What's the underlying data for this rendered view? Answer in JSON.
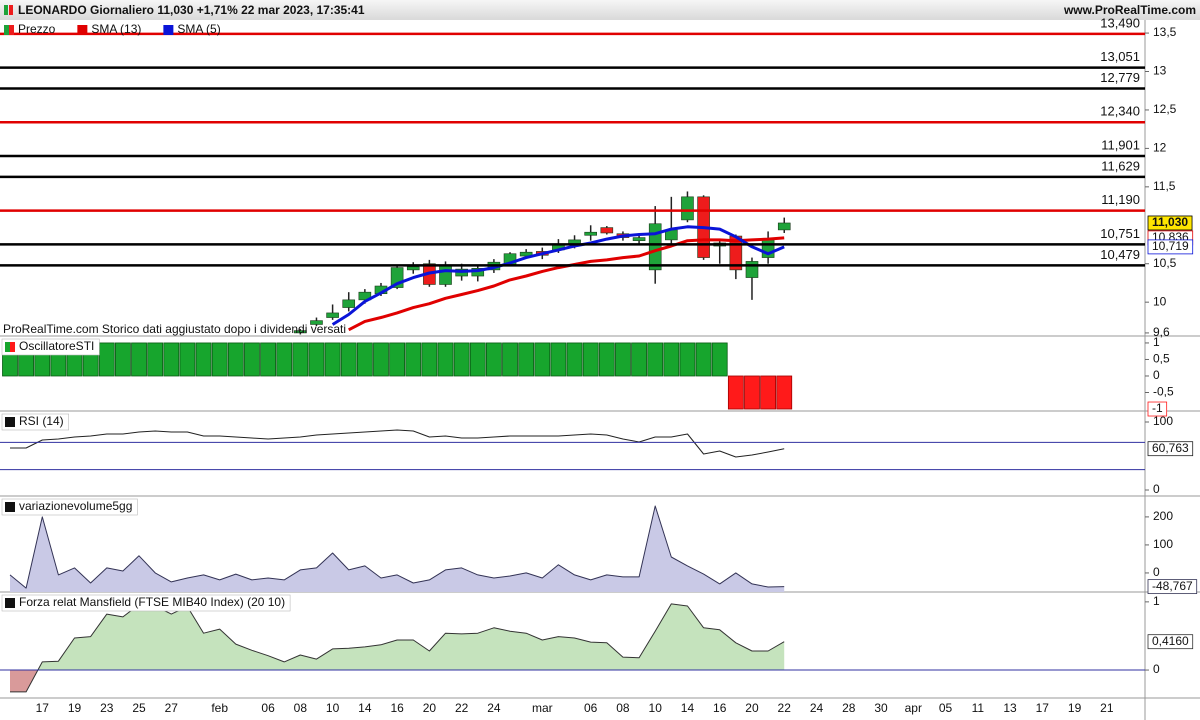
{
  "header": {
    "title": "LEONARDO Giornaliero 11,030 +1,71% 22 mar 2023, 17:35:41",
    "site": "www.ProRealTime.com"
  },
  "categories": [
    null,
    null,
    "17",
    null,
    "19",
    null,
    "23",
    null,
    "25",
    null,
    "27",
    null,
    null,
    "feb",
    null,
    null,
    "06",
    null,
    "08",
    null,
    "10",
    null,
    "14",
    null,
    "16",
    null,
    "20",
    null,
    "22",
    null,
    "24",
    null,
    null,
    "mar",
    null,
    null,
    "06",
    null,
    "08",
    null,
    "10",
    null,
    "14",
    null,
    "16",
    null,
    "20",
    null,
    "22",
    null,
    "24",
    null,
    "28",
    null,
    "30",
    null,
    "apr",
    null,
    "05",
    null,
    "11",
    null,
    "13",
    null,
    "17",
    null,
    "19",
    null,
    "21"
  ],
  "chart_data": [
    {
      "type": "candlestick",
      "note": "ProRealTime.com  Storico dati aggiustato dopo i dividendi versati",
      "ylim": [
        9.56,
        13.67
      ],
      "yticks": [
        {
          "value": 13.5,
          "label": "13,5"
        },
        13,
        {
          "value": 12.5,
          "label": "12,5"
        },
        12,
        {
          "value": 11.5,
          "label": "11,5"
        },
        {
          "value": 10.5,
          "label": "10,5"
        },
        10,
        {
          "value": 9.6,
          "label": "9,6"
        }
      ],
      "levels": [
        {
          "value": 13.49,
          "label": "13,490",
          "color": "#e00000"
        },
        {
          "value": 13.051,
          "label": "13,051",
          "color": "#000000"
        },
        {
          "value": 12.779,
          "label": "12,779",
          "color": "#000000"
        },
        {
          "value": 12.34,
          "label": "12,340",
          "color": "#e00000"
        },
        {
          "value": 11.901,
          "label": "11,901",
          "color": "#000000"
        },
        {
          "value": 11.629,
          "label": "11,629",
          "color": "#000000"
        },
        {
          "value": 11.19,
          "label": "11,190",
          "color": "#e00000"
        },
        {
          "value": 10.751,
          "label": "10,751",
          "color": "#000000"
        },
        {
          "value": 10.479,
          "label": "10,479",
          "color": "#000000"
        }
      ],
      "series": [
        {
          "name": "Prezzo",
          "type": "candlestick",
          "color": "#1fa33a",
          "color_negative": "#ee1c1c",
          "last_label": "11,030",
          "last_label_fill": "#ffe600",
          "open": [
            null,
            null,
            null,
            null,
            null,
            null,
            null,
            null,
            null,
            null,
            null,
            null,
            null,
            null,
            null,
            null,
            null,
            null,
            9.6,
            9.71,
            9.8,
            9.93,
            10.03,
            10.11,
            10.19,
            10.42,
            10.5,
            10.23,
            10.34,
            10.34,
            10.42,
            10.49,
            10.6,
            10.66,
            10.68,
            10.75,
            10.87,
            10.97,
            10.89,
            10.8,
            10.42,
            10.81,
            11.07,
            11.37,
            10.73,
            10.86,
            10.32,
            10.58,
            10.94,
            null,
            null,
            null,
            null,
            null,
            null,
            null,
            null,
            null,
            null,
            null,
            null,
            null,
            null,
            null,
            null,
            null,
            null,
            null,
            null
          ],
          "high": [
            null,
            null,
            null,
            null,
            null,
            null,
            null,
            null,
            null,
            null,
            null,
            null,
            null,
            null,
            null,
            null,
            null,
            null,
            9.65,
            9.8,
            9.97,
            10.13,
            10.17,
            10.25,
            10.48,
            10.52,
            10.55,
            10.53,
            10.5,
            10.49,
            10.56,
            10.65,
            10.69,
            10.71,
            10.82,
            10.87,
            11.0,
            10.99,
            10.92,
            10.87,
            11.25,
            11.37,
            11.44,
            11.39,
            10.81,
            10.88,
            10.58,
            10.92,
            11.1,
            null,
            null,
            null,
            null,
            null,
            null,
            null,
            null,
            null,
            null,
            null,
            null,
            null,
            null,
            null,
            null,
            null,
            null,
            null,
            null
          ],
          "low": [
            null,
            null,
            null,
            null,
            null,
            null,
            null,
            null,
            null,
            null,
            null,
            null,
            null,
            null,
            null,
            null,
            null,
            null,
            9.58,
            9.69,
            9.77,
            9.88,
            9.98,
            10.08,
            10.17,
            10.37,
            10.2,
            10.2,
            10.28,
            10.27,
            10.38,
            10.47,
            10.57,
            10.56,
            10.64,
            10.7,
            10.8,
            10.88,
            10.8,
            10.74,
            10.24,
            10.76,
            11.04,
            10.55,
            10.5,
            10.3,
            10.03,
            10.5,
            10.9,
            null,
            null,
            null,
            null,
            null,
            null,
            null,
            null,
            null,
            null,
            null,
            null,
            null,
            null,
            null,
            null,
            null,
            null,
            null,
            null
          ],
          "close": [
            null,
            null,
            null,
            null,
            null,
            null,
            null,
            null,
            null,
            null,
            null,
            null,
            null,
            null,
            null,
            null,
            null,
            null,
            9.63,
            9.76,
            9.86,
            10.03,
            10.13,
            10.21,
            10.45,
            10.46,
            10.23,
            10.48,
            10.43,
            10.44,
            10.52,
            10.63,
            10.65,
            10.61,
            10.75,
            10.81,
            10.91,
            10.9,
            10.84,
            10.84,
            11.02,
            10.94,
            11.37,
            10.58,
            10.77,
            10.42,
            10.53,
            10.81,
            11.03,
            null,
            null,
            null,
            null,
            null,
            null,
            null,
            null,
            null,
            null,
            null,
            null,
            null,
            null,
            null,
            null,
            null,
            null,
            null,
            null
          ]
        },
        {
          "name": "SMA (13)",
          "type": "line",
          "color": "#e00000",
          "last_label": "10,836",
          "values": [
            null,
            null,
            null,
            null,
            null,
            null,
            null,
            null,
            null,
            null,
            null,
            null,
            null,
            null,
            null,
            null,
            null,
            null,
            null,
            null,
            null,
            9.64,
            9.75,
            9.8,
            9.86,
            9.93,
            9.98,
            10.05,
            10.1,
            10.15,
            10.21,
            10.29,
            10.34,
            10.4,
            10.45,
            10.49,
            10.53,
            10.55,
            10.58,
            10.6,
            10.67,
            10.73,
            10.8,
            10.81,
            10.81,
            10.8,
            10.81,
            10.82,
            10.836,
            null,
            null,
            null,
            null,
            null,
            null,
            null,
            null,
            null,
            null,
            null,
            null,
            null,
            null,
            null,
            null,
            null,
            null,
            null,
            null
          ]
        },
        {
          "name": "SMA (5)",
          "type": "line",
          "color": "#0a14d8",
          "last_label": "10,719",
          "values": [
            null,
            null,
            null,
            null,
            null,
            null,
            null,
            null,
            null,
            null,
            null,
            null,
            null,
            null,
            null,
            null,
            null,
            null,
            null,
            null,
            9.71,
            9.84,
            10.01,
            10.12,
            10.24,
            10.32,
            10.38,
            10.41,
            10.4,
            10.41,
            10.45,
            10.51,
            10.58,
            10.63,
            10.68,
            10.73,
            10.77,
            10.82,
            10.86,
            10.88,
            10.89,
            10.95,
            10.98,
            10.97,
            10.95,
            10.85,
            10.72,
            10.63,
            10.719,
            null,
            null,
            null,
            null,
            null,
            null,
            null,
            null,
            null,
            null,
            null,
            null,
            null,
            null,
            null,
            null,
            null,
            null,
            null,
            null
          ]
        }
      ]
    },
    {
      "type": "bar",
      "title": "OscillatoreSTI",
      "ylim": [
        -1.06,
        1.18
      ],
      "yticks": [
        1,
        {
          "value": 0.5,
          "label": "0,5"
        },
        0,
        {
          "value": -0.5,
          "label": "-0,5"
        }
      ],
      "series": [
        {
          "type": "bar",
          "color": "#17a52d",
          "color_negative": "#ff1a1a",
          "last_label": "-1",
          "values": [
            1,
            1,
            1,
            1,
            1,
            1,
            1,
            1,
            1,
            1,
            1,
            1,
            1,
            1,
            1,
            1,
            1,
            1,
            1,
            1,
            1,
            1,
            1,
            1,
            1,
            1,
            1,
            1,
            1,
            1,
            1,
            1,
            1,
            1,
            1,
            1,
            1,
            1,
            1,
            1,
            1,
            1,
            1,
            1,
            1,
            -1,
            -1,
            -1,
            -1,
            null,
            null,
            null,
            null,
            null,
            null,
            null,
            null,
            null,
            null,
            null,
            null,
            null,
            null,
            null,
            null,
            null,
            null,
            null,
            null
          ]
        }
      ]
    },
    {
      "type": "line",
      "title": "RSI (14)",
      "ylim": [
        -8.8,
        114.7
      ],
      "yticks": [
        100,
        0
      ],
      "levels": [
        {
          "value": 70,
          "color": "#3030a0"
        },
        {
          "value": 30,
          "color": "#3030a0"
        }
      ],
      "series": [
        {
          "type": "line",
          "color": "#222222",
          "last_label": "60,763",
          "values": [
            61.8,
            61.8,
            73.5,
            75.0,
            77.9,
            79.4,
            82.4,
            82.4,
            85.3,
            86.8,
            85.3,
            85.3,
            79.4,
            79.4,
            77.9,
            76.5,
            75.0,
            76.5,
            77.9,
            80.9,
            82.4,
            83.8,
            85.3,
            86.8,
            88.2,
            86.8,
            77.9,
            79.4,
            76.5,
            76.5,
            77.9,
            79.4,
            79.4,
            79.4,
            79.4,
            80.9,
            82.4,
            80.9,
            75.0,
            70.6,
            77.9,
            77.9,
            82.4,
            52.9,
            57.4,
            48.5,
            51.5,
            55.9,
            60.763,
            null,
            null,
            null,
            null,
            null,
            null,
            null,
            null,
            null,
            null,
            null,
            null,
            null,
            null,
            null,
            null,
            null,
            null,
            null,
            null
          ]
        }
      ]
    },
    {
      "type": "area",
      "title": "variazionevolume5gg",
      "ylim": [
        -68,
        271
      ],
      "yticks": [
        200,
        100,
        0
      ],
      "series": [
        {
          "type": "area",
          "color": "#333355",
          "fill_color": "#c9c9e6",
          "last_label": "-48,767",
          "values": [
            -7,
            -54,
            200,
            -7,
            18,
            -36,
            18,
            7,
            61,
            0,
            -32,
            -18,
            -7,
            -25,
            -4,
            -25,
            -18,
            -25,
            11,
            18,
            71,
            11,
            25,
            -18,
            -7,
            -36,
            -25,
            11,
            18,
            -7,
            -18,
            -11,
            0,
            -18,
            29,
            -7,
            -25,
            -7,
            -14,
            -14,
            239,
            57,
            25,
            -4,
            -39,
            0,
            -39,
            -50,
            -48.767,
            null,
            null,
            null,
            null,
            null,
            null,
            null,
            null,
            null,
            null,
            null,
            null,
            null,
            null,
            null,
            null,
            null,
            null,
            null,
            null
          ]
        }
      ]
    },
    {
      "type": "area",
      "title": "Forza relat Mansfield (FTSE MIB40 Index) (20 10)",
      "ylim": [
        -0.41,
        1.13
      ],
      "yticks": [
        1,
        0
      ],
      "levels": [
        {
          "value": 0,
          "color": "#3030a0"
        }
      ],
      "series": [
        {
          "type": "area",
          "color": "#333333",
          "fill_color": "#c5e3bd",
          "fill_color_negative": "#d99a9a",
          "last_label": "0,4160",
          "values": [
            -0.32,
            -0.32,
            0.12,
            0.13,
            0.47,
            0.49,
            0.82,
            0.78,
            0.96,
            0.94,
            0.82,
            0.93,
            0.54,
            0.6,
            0.38,
            0.29,
            0.21,
            0.12,
            0.22,
            0.16,
            0.31,
            0.32,
            0.34,
            0.37,
            0.44,
            0.44,
            0.28,
            0.54,
            0.53,
            0.54,
            0.62,
            0.57,
            0.54,
            0.44,
            0.49,
            0.47,
            0.41,
            0.4,
            0.19,
            0.18,
            0.57,
            0.97,
            0.94,
            0.62,
            0.59,
            0.4,
            0.28,
            0.28,
            0.416,
            null,
            null,
            null,
            null,
            null,
            null,
            null,
            null,
            null,
            null,
            null,
            null,
            null,
            null,
            null,
            null,
            null,
            null,
            null,
            null
          ]
        }
      ]
    }
  ]
}
